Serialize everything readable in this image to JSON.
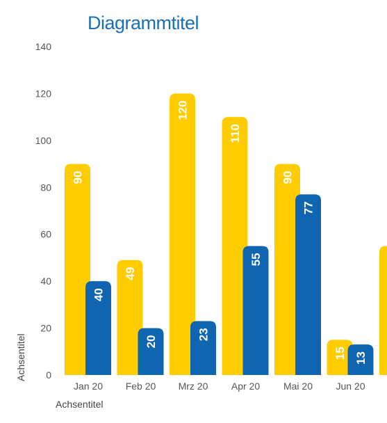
{
  "chart_data": {
    "type": "bar",
    "title": "Diagrammtitel",
    "xlabel": "Achsentitel",
    "ylabel": "Achsentitel",
    "ylim": [
      0,
      140
    ],
    "yticks": [
      0,
      20,
      40,
      60,
      80,
      100,
      120,
      140
    ],
    "categories": [
      "Jan 20",
      "Feb 20",
      "Mrz 20",
      "Apr 20",
      "Mai 20",
      "Jun 20",
      ""
    ],
    "series": [
      {
        "color": "#ffcc00",
        "values": [
          90,
          49,
          120,
          110,
          90,
          15,
          55
        ]
      },
      {
        "color": "#0f65b0",
        "values": [
          40,
          20,
          23,
          55,
          77,
          13,
          null
        ]
      }
    ],
    "data_labels": {
      "rotation": "vertical",
      "color": "#ffffff"
    },
    "grid": false,
    "legend": "none"
  }
}
